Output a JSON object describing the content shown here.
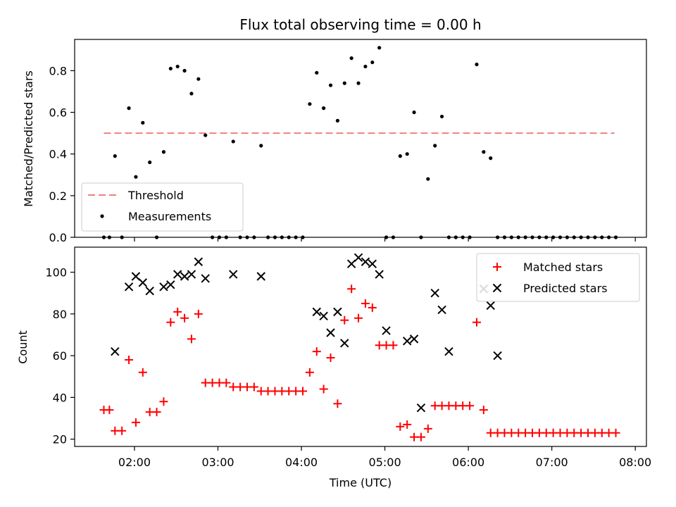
{
  "chart_data": [
    {
      "type": "scatter",
      "title": "Flux total observing time = 0.00 h",
      "xlabel": "",
      "ylabel": "Matched/Predicted stars",
      "xlim": [
        "01:17",
        "08:08"
      ],
      "ylim": [
        0,
        0.95
      ],
      "yticks": [
        0.0,
        0.2,
        0.4,
        0.6,
        0.8
      ],
      "ytick_labels": [
        "0.0",
        "0.2",
        "0.4",
        "0.6",
        "0.8"
      ],
      "xticks": [
        "02:00",
        "03:00",
        "04:00",
        "05:00",
        "06:00",
        "07:00",
        "08:00"
      ],
      "legend_position": "lower-left",
      "threshold": {
        "name": "Threshold",
        "value": 0.5,
        "x_start": "01:38",
        "x_end": "07:45",
        "color": "#f08080"
      },
      "series": [
        {
          "name": "Measurements",
          "color": "#000000",
          "marker": "dot",
          "x": [
            "01:38",
            "01:42",
            "01:46",
            "01:51",
            "01:56",
            "02:01",
            "02:06",
            "02:11",
            "02:16",
            "02:21",
            "02:26",
            "02:31",
            "02:36",
            "02:41",
            "02:46",
            "02:51",
            "02:56",
            "03:01",
            "03:06",
            "03:11",
            "03:16",
            "03:21",
            "03:26",
            "03:31",
            "03:36",
            "03:41",
            "03:46",
            "03:51",
            "03:56",
            "04:01",
            "04:06",
            "04:11",
            "04:16",
            "04:21",
            "04:26",
            "04:31",
            "04:36",
            "04:41",
            "04:46",
            "04:51",
            "04:56",
            "05:01",
            "05:06",
            "05:11",
            "05:16",
            "05:21",
            "05:26",
            "05:31",
            "05:36",
            "05:41",
            "05:46",
            "05:51",
            "05:56",
            "06:01",
            "06:06",
            "06:11",
            "06:16",
            "06:21",
            "06:26",
            "06:31",
            "06:36",
            "06:41",
            "06:46",
            "06:51",
            "06:56",
            "07:01",
            "07:06",
            "07:11",
            "07:16",
            "07:21",
            "07:26",
            "07:31",
            "07:36",
            "07:41",
            "07:46"
          ],
          "y": [
            0.0,
            0.0,
            0.39,
            0.0,
            0.62,
            0.29,
            0.55,
            0.36,
            0.0,
            0.41,
            0.81,
            0.82,
            0.8,
            0.69,
            0.76,
            0.49,
            0.0,
            0.0,
            0.0,
            0.46,
            0.0,
            0.0,
            0.0,
            0.44,
            0.0,
            0.0,
            0.0,
            0.0,
            0.0,
            0.0,
            0.64,
            0.79,
            0.62,
            0.73,
            0.56,
            0.74,
            0.86,
            0.74,
            0.82,
            0.84,
            0.91,
            0.0,
            0.0,
            0.39,
            0.4,
            0.6,
            0.0,
            0.28,
            0.44,
            0.58,
            0.0,
            0.0,
            0.0,
            0.0,
            0.83,
            0.41,
            0.38,
            0.0,
            0.0,
            0.0,
            0.0,
            0.0,
            0.0,
            0.0,
            0.0,
            0.0,
            0.0,
            0.0,
            0.0,
            0.0,
            0.0,
            0.0,
            0.0,
            0.0,
            0.0
          ]
        }
      ]
    },
    {
      "type": "scatter",
      "title": "",
      "xlabel": "Time (UTC)",
      "ylabel": "Count",
      "xlim": [
        "01:17",
        "08:08"
      ],
      "ylim": [
        16.5,
        112
      ],
      "yticks": [
        20,
        40,
        60,
        80,
        100
      ],
      "ytick_labels": [
        "20",
        "40",
        "60",
        "80",
        "100"
      ],
      "xticks": [
        "02:00",
        "03:00",
        "04:00",
        "05:00",
        "06:00",
        "07:00",
        "08:00"
      ],
      "xtick_labels": [
        "02:00",
        "03:00",
        "04:00",
        "05:00",
        "06:00",
        "07:00",
        "08:00"
      ],
      "legend_position": "upper-right",
      "series": [
        {
          "name": "Matched stars",
          "color": "#ff0000",
          "marker": "plus",
          "x": [
            "01:38",
            "01:42",
            "01:46",
            "01:51",
            "01:56",
            "02:01",
            "02:06",
            "02:11",
            "02:16",
            "02:21",
            "02:26",
            "02:31",
            "02:36",
            "02:41",
            "02:46",
            "02:51",
            "02:56",
            "03:01",
            "03:06",
            "03:11",
            "03:16",
            "03:21",
            "03:26",
            "03:31",
            "03:36",
            "03:41",
            "03:46",
            "03:51",
            "03:56",
            "04:01",
            "04:06",
            "04:11",
            "04:16",
            "04:21",
            "04:26",
            "04:31",
            "04:36",
            "04:41",
            "04:46",
            "04:51",
            "04:56",
            "05:01",
            "05:06",
            "05:11",
            "05:16",
            "05:21",
            "05:26",
            "05:31",
            "05:36",
            "05:41",
            "05:46",
            "05:51",
            "05:56",
            "06:01",
            "06:06",
            "06:11",
            "06:16",
            "06:21",
            "06:26",
            "06:31",
            "06:36",
            "06:41",
            "06:46",
            "06:51",
            "06:56",
            "07:01",
            "07:06",
            "07:11",
            "07:16",
            "07:21",
            "07:26",
            "07:31",
            "07:36",
            "07:41",
            "07:46"
          ],
          "y": [
            34,
            34,
            24,
            24,
            58,
            28,
            52,
            33,
            33,
            38,
            76,
            81,
            78,
            68,
            80,
            47,
            47,
            47,
            47,
            45,
            45,
            45,
            45,
            43,
            43,
            43,
            43,
            43,
            43,
            43,
            52,
            62,
            44,
            59,
            37,
            77,
            92,
            78,
            85,
            83,
            65,
            65,
            65,
            26,
            27,
            21,
            21,
            25,
            36,
            36,
            36,
            36,
            36,
            36,
            76,
            34,
            23,
            23,
            23,
            23,
            23,
            23,
            23,
            23,
            23,
            23,
            23,
            23,
            23,
            23,
            23,
            23,
            23,
            23,
            23
          ]
        },
        {
          "name": "Predicted stars",
          "color": "#000000",
          "marker": "x",
          "x": [
            "01:46",
            "01:56",
            "02:01",
            "02:06",
            "02:11",
            "02:21",
            "02:26",
            "02:31",
            "02:36",
            "02:41",
            "02:46",
            "02:51",
            "03:11",
            "03:31",
            "04:11",
            "04:16",
            "04:21",
            "04:26",
            "04:31",
            "04:36",
            "04:41",
            "04:46",
            "04:51",
            "04:56",
            "05:01",
            "05:16",
            "05:21",
            "05:26",
            "05:36",
            "05:41",
            "05:46",
            "06:11",
            "06:16",
            "06:21"
          ],
          "y": [
            62,
            93,
            98,
            95,
            91,
            93,
            94,
            99,
            98,
            99,
            105,
            97,
            99,
            98,
            81,
            79,
            71,
            81,
            66,
            104,
            107,
            105,
            104,
            99,
            72,
            67,
            68,
            35,
            90,
            82,
            62,
            92,
            84,
            60
          ]
        }
      ]
    }
  ]
}
